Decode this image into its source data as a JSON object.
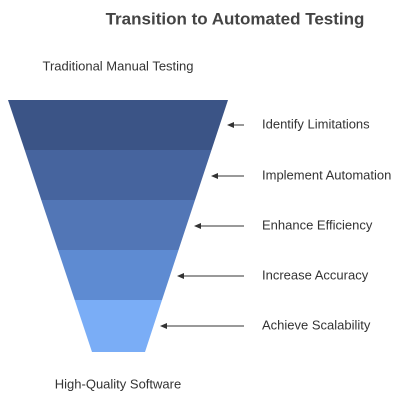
{
  "title": "Transition to Automated Testing",
  "top_label": "Traditional Manual Testing",
  "bottom_label": "High-Quality Software",
  "stages": [
    {
      "label": "Identify Limitations"
    },
    {
      "label": "Implement Automation"
    },
    {
      "label": "Enhance Efficiency"
    },
    {
      "label": "Increase Accuracy"
    },
    {
      "label": "Achieve Scalability"
    }
  ]
}
